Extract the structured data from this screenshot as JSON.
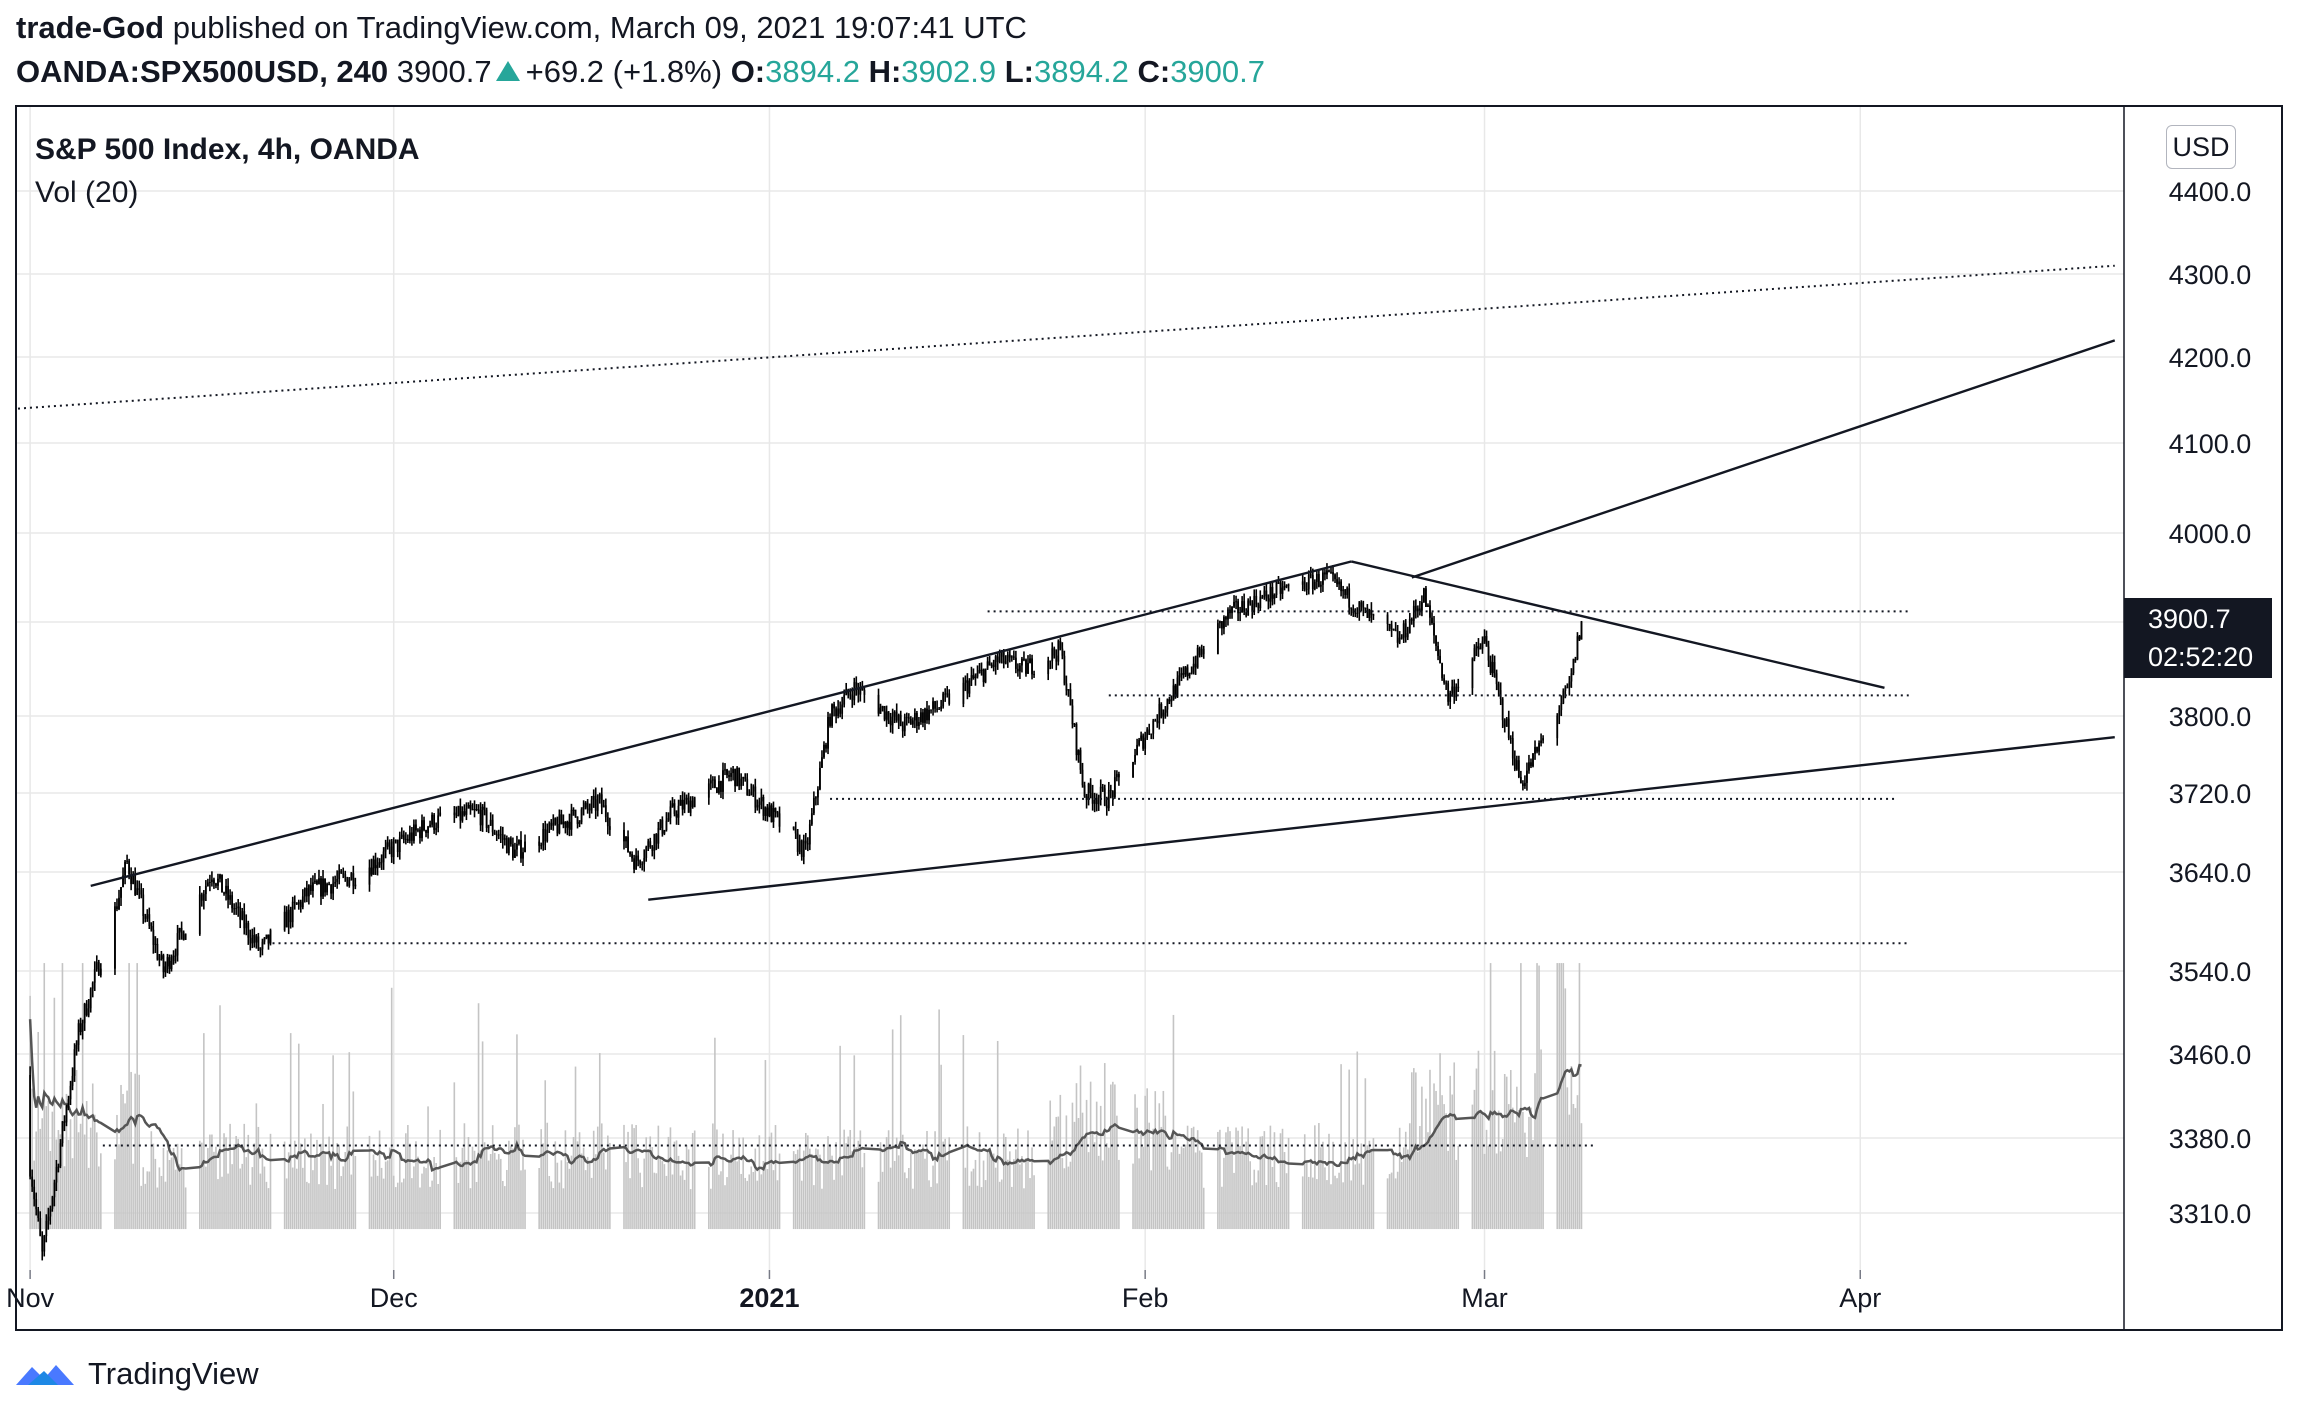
{
  "header": {
    "author": "trade-God",
    "published_text": "published on TradingView.com, March 09, 2021 19:07:41 UTC",
    "symbol": "OANDA:SPX500USD, 240",
    "last": "3900.7",
    "change": "+69.2 (+1.8%)",
    "o_label": "O:",
    "o_value": "3894.2",
    "h_label": "H:",
    "h_value": "3902.9",
    "l_label": "L:",
    "l_value": "3894.2",
    "c_label": "C:",
    "c_value": "3900.7"
  },
  "legend": {
    "series": "S&P 500 Index, 4h, OANDA",
    "volume": "Vol (20)"
  },
  "currency": "USD",
  "price_badge": {
    "price": "3900.7",
    "countdown": "02:52:20"
  },
  "footer": {
    "brand": "TradingView"
  },
  "colors": {
    "up": "#26a69a",
    "ink": "#131722",
    "grid": "#e8e8e8",
    "volume": "#c4c4c4"
  },
  "chart_data": {
    "type": "candlestick",
    "interval": "4h",
    "y_axis": {
      "ticks": [
        3310,
        3380,
        3460,
        3540,
        3640,
        3720,
        3800,
        3900,
        4000,
        4100,
        4200,
        4300,
        4400
      ],
      "tick_labels": [
        "3310.0",
        "3380.0",
        "3460.0",
        "3540.0",
        "3640.0",
        "3720.0",
        "3800.0",
        "3900.0",
        "4000.0",
        "4100.0",
        "4200.0",
        "4300.0",
        "4400.0"
      ],
      "position": "right"
    },
    "x_axis": {
      "tick_labels": [
        "Nov",
        "Dec",
        "2021",
        "Feb",
        "Mar",
        "Apr"
      ],
      "tick_dates": [
        "2020-11-01",
        "2020-12-01",
        "2021-01-01",
        "2021-02-01",
        "2021-03-01",
        "2021-04-01"
      ],
      "range": [
        "2020-10-31",
        "2021-04-22"
      ]
    },
    "price_path": [
      [
        "2020-10-31",
        3440
      ],
      [
        "2020-11-02",
        3270
      ],
      [
        "2020-11-05",
        3480
      ],
      [
        "2020-11-08",
        3600
      ],
      [
        "2020-11-09",
        3650
      ],
      [
        "2020-11-12",
        3540
      ],
      [
        "2020-11-16",
        3640
      ],
      [
        "2020-11-20",
        3560
      ],
      [
        "2020-11-24",
        3620
      ],
      [
        "2020-11-28",
        3638
      ],
      [
        "2020-12-04",
        3690
      ],
      [
        "2020-12-08",
        3700
      ],
      [
        "2020-12-11",
        3660
      ],
      [
        "2020-12-15",
        3690
      ],
      [
        "2020-12-18",
        3710
      ],
      [
        "2020-12-21",
        3650
      ],
      [
        "2020-12-24",
        3700
      ],
      [
        "2020-12-29",
        3740
      ],
      [
        "2021-01-04",
        3660
      ],
      [
        "2021-01-06",
        3800
      ],
      [
        "2021-01-08",
        3830
      ],
      [
        "2021-01-12",
        3790
      ],
      [
        "2021-01-15",
        3810
      ],
      [
        "2021-01-20",
        3860
      ],
      [
        "2021-01-22",
        3850
      ],
      [
        "2021-01-25",
        3870
      ],
      [
        "2021-01-27",
        3720
      ],
      [
        "2021-01-29",
        3715
      ],
      [
        "2021-02-01",
        3780
      ],
      [
        "2021-02-03",
        3820
      ],
      [
        "2021-02-08",
        3910
      ],
      [
        "2021-02-12",
        3935
      ],
      [
        "2021-02-16",
        3950
      ],
      [
        "2021-02-19",
        3910
      ],
      [
        "2021-02-22",
        3880
      ],
      [
        "2021-02-24",
        3930
      ],
      [
        "2021-02-26",
        3820
      ],
      [
        "2021-03-01",
        3880
      ],
      [
        "2021-03-04",
        3730
      ],
      [
        "2021-03-08",
        3830
      ],
      [
        "2021-03-09",
        3900.7
      ]
    ],
    "volume": {
      "axis_baseline": 3295,
      "moving_average_period": 20,
      "peak_level": 3548
    },
    "trendlines": [
      {
        "style": "solid",
        "from": [
          "2020-11-06",
          3626
        ],
        "to": [
          "2021-02-18",
          3968
        ]
      },
      {
        "style": "solid",
        "from": [
          "2020-12-22",
          3612
        ],
        "to": [
          "2021-04-22",
          3778
        ]
      },
      {
        "style": "solid",
        "from": [
          "2021-02-18",
          3968
        ],
        "to": [
          "2021-04-03",
          3830
        ]
      },
      {
        "style": "solid",
        "from": [
          "2021-02-23",
          3950
        ],
        "to": [
          "2021-04-22",
          4220
        ]
      },
      {
        "style": "dotted",
        "from": [
          "2020-10-31",
          4140
        ],
        "to": [
          "2021-04-22",
          4310
        ]
      }
    ],
    "horizontal_levels": [
      {
        "price": 3912,
        "from": "2021-01-19",
        "to": "2021-04-05"
      },
      {
        "price": 3822,
        "from": "2021-01-29",
        "to": "2021-04-05"
      },
      {
        "price": 3714,
        "from": "2021-01-06",
        "to": "2021-04-04"
      },
      {
        "price": 3568,
        "from": "2020-11-21",
        "to": "2021-04-05"
      },
      {
        "price": 3373,
        "from": "2020-11-07",
        "to": "2021-03-10"
      }
    ]
  }
}
